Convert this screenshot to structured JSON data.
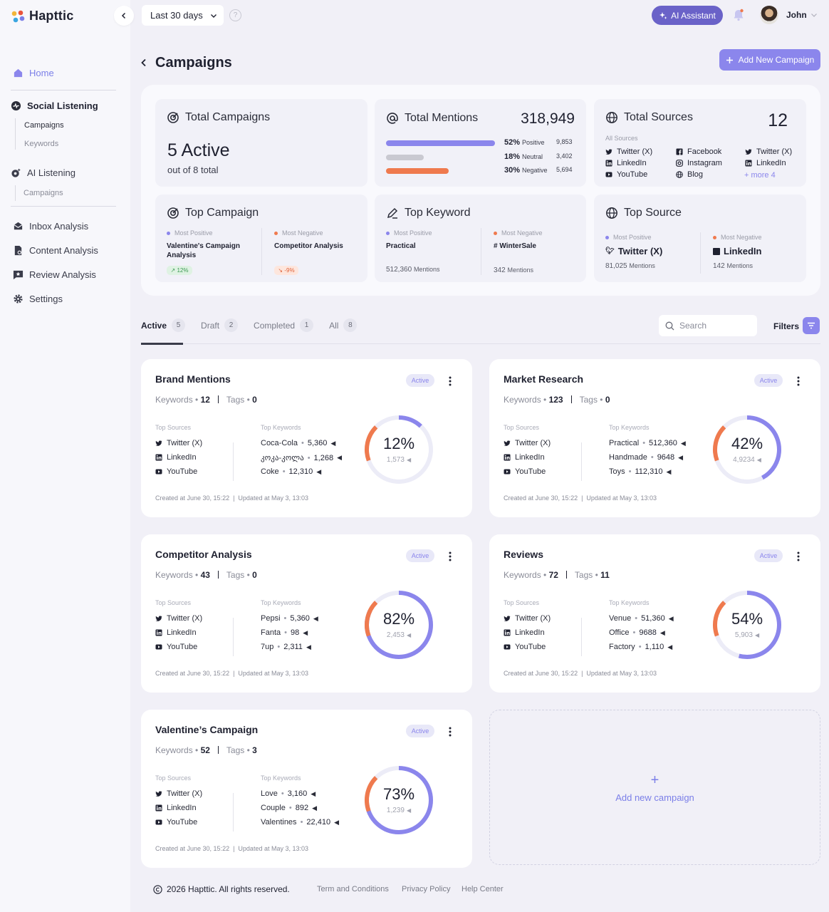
{
  "app": {
    "name": "Hapttic"
  },
  "topbar": {
    "date_range": "Last 30 days",
    "help": "?",
    "ai_assistant": "AI Assistant",
    "user_name": "John"
  },
  "sidebar": {
    "home": "Home",
    "social_listening": "Social Listening",
    "social_sub": [
      "Campaigns",
      "Keywords"
    ],
    "ai_listening": "AI Listening",
    "ai_sub": [
      "Campaigns"
    ],
    "inbox": "Inbox Analysis",
    "content": "Content Analysis",
    "review": "Review Analysis",
    "settings": "Settings"
  },
  "page": {
    "title": "Campaigns",
    "add_button": "Add New Campaign"
  },
  "summary": {
    "total_campaigns": {
      "title": "Total Campaigns",
      "value": "5 Active",
      "sub": "out of 8 total"
    },
    "total_mentions": {
      "title": "Total Mentions",
      "value": "318,949",
      "rows": [
        {
          "pct": "52%",
          "label": "Positive",
          "count": "9,853",
          "fraction": 0.52,
          "color": "#8b86ec"
        },
        {
          "pct": "18%",
          "label": "Neutral",
          "count": "3,402",
          "fraction": 0.18,
          "color": "#c9c9d1"
        },
        {
          "pct": "30%",
          "label": "Negative",
          "count": "5,694",
          "fraction": 0.3,
          "color": "#ef7a4e"
        }
      ]
    },
    "total_sources": {
      "title": "Total Sources",
      "value": "12",
      "label": "All Sources",
      "col1": [
        "Twitter (X)",
        "LinkedIn",
        "YouTube"
      ],
      "col2": [
        "Facebook",
        "Instagram",
        "Blog"
      ],
      "col3": [
        "Twitter (X)",
        "LinkedIn"
      ],
      "more": "+ more 4"
    },
    "top_campaign": {
      "title": "Top Campaign",
      "pos_label": "Most Positive",
      "pos_name": "Valentine's Campaign Analysis",
      "pos_badge": "12%",
      "neg_label": "Most Negative",
      "neg_name": "Competitor Analysis",
      "neg_badge": "-9%"
    },
    "top_keyword": {
      "title": "Top Keyword",
      "pos_label": "Most Positive",
      "pos_name": "Practical",
      "pos_count": "512,360",
      "pos_unit": "Mentions",
      "neg_label": "Most Negative",
      "neg_name": "# WinterSale",
      "neg_count": "342",
      "neg_unit": "Mentions"
    },
    "top_source": {
      "title": "Top Source",
      "pos_label": "Most Positive",
      "pos_name": "Twitter (X)",
      "pos_count": "81,025",
      "pos_unit": "Mentions",
      "neg_label": "Most Negative",
      "neg_name": "LinkedIn",
      "neg_count": "142",
      "neg_unit": "Mentions"
    }
  },
  "tabs": [
    {
      "label": "Active",
      "count": "5"
    },
    {
      "label": "Draft",
      "count": "2"
    },
    {
      "label": "Completed",
      "count": "1"
    },
    {
      "label": "All",
      "count": "8"
    }
  ],
  "search": {
    "placeholder": "Search"
  },
  "filters": "Filters",
  "labels": {
    "keywords": "Keywords",
    "tags": "Tags",
    "top_sources": "Top Sources",
    "top_keywords": "Top Keywords",
    "sources": [
      "Twitter (X)",
      "LinkedIn",
      "YouTube"
    ]
  },
  "campaigns": [
    {
      "title": "Brand Mentions",
      "badge": "Active",
      "keywords": "12",
      "tags": "0",
      "top_keywords": [
        {
          "name": "Coca-Cola",
          "count": "5,360"
        },
        {
          "name": "კოკა-კოლა",
          "count": "1,268"
        },
        {
          "name": "Coke",
          "count": "12,310"
        }
      ],
      "percent": 12,
      "percent_label": "12%",
      "mentions": "1,573",
      "created": "Created at June 30, 15:22",
      "updated": "Updated at May 3, 13:03"
    },
    {
      "title": "Market Research",
      "badge": "Active",
      "keywords": "123",
      "tags": "0",
      "top_keywords": [
        {
          "name": "Practical",
          "count": "512,360"
        },
        {
          "name": "Handmade",
          "count": "9648"
        },
        {
          "name": "Toys",
          "count": "112,310"
        }
      ],
      "percent": 42,
      "percent_label": "42%",
      "mentions": "4,9234",
      "created": "Created at June 30, 15:22",
      "updated": "Updated at May 3, 13:03"
    },
    {
      "title": "Competitor Analysis",
      "badge": "Active",
      "keywords": "43",
      "tags": "0",
      "top_keywords": [
        {
          "name": "Pepsi",
          "count": "5,360"
        },
        {
          "name": "Fanta",
          "count": "98"
        },
        {
          "name": "7up",
          "count": "2,311"
        }
      ],
      "percent": 82,
      "percent_label": "82%",
      "mentions": "2,453",
      "created": "Created at June 30, 15:22",
      "updated": "Updated at May 3, 13:03"
    },
    {
      "title": "Reviews",
      "badge": "Active",
      "keywords": "72",
      "tags": "11",
      "top_keywords": [
        {
          "name": "Venue",
          "count": "51,360"
        },
        {
          "name": "Office",
          "count": "9688"
        },
        {
          "name": "Factory",
          "count": "1,110"
        }
      ],
      "percent": 54,
      "percent_label": "54%",
      "mentions": "5,903",
      "created": "Created at June 30, 15:22",
      "updated": "Updated at May 3, 13:03"
    },
    {
      "title": "Valentine’s Campaign",
      "badge": "Active",
      "keywords": "52",
      "tags": "3",
      "top_keywords": [
        {
          "name": "Love",
          "count": "3,160"
        },
        {
          "name": "Couple",
          "count": "892"
        },
        {
          "name": "Valentines",
          "count": "22,410"
        }
      ],
      "percent": 73,
      "percent_label": "73%",
      "mentions": "1,239",
      "created": "Created at June 30, 15:22",
      "updated": "Updated at May 3, 13:03"
    }
  ],
  "new_campaign": {
    "plus": "+",
    "label": "Add new campaign"
  },
  "footer": {
    "copyright": "2026 Hapttic. All rights reserved.",
    "links": [
      "Term and Conditions",
      "Privacy Policy",
      "Help Center"
    ]
  },
  "colors": {
    "accent": "#8b86ec",
    "negative": "#ef7a4e",
    "ai": "#6a62c8"
  },
  "icons": {
    "home": "home-icon",
    "social": "activity-icon",
    "ai": "ai-listening-icon",
    "inbox": "inbox-icon",
    "content": "content-icon",
    "review": "review-icon",
    "settings": "gear-icon"
  }
}
